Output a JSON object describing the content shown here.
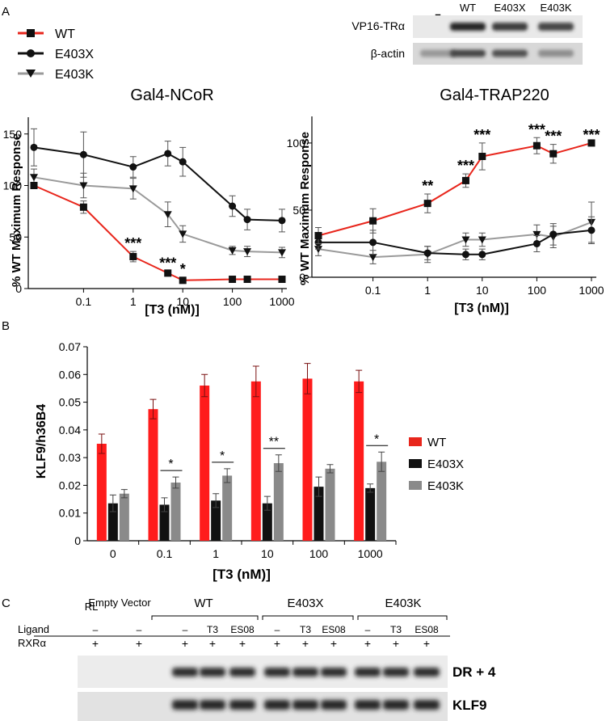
{
  "panels": {
    "a": "A",
    "b": "B",
    "c": "C"
  },
  "blot_a": {
    "lanes": [
      "–",
      "WT",
      "E403X",
      "E403K"
    ],
    "rows": [
      "VP16-TRα",
      "β-actin"
    ],
    "row1_intensity": [
      0.05,
      0.95,
      0.85,
      0.8
    ],
    "row2_intensity": [
      0.4,
      0.8,
      0.75,
      0.45
    ]
  },
  "legend_a": [
    "WT",
    "E403X",
    "E403K"
  ],
  "colors": {
    "wt": "#e8261c",
    "e403x": "#111111",
    "e403k": "#9a9a9a"
  },
  "chart_data": [
    {
      "type": "line",
      "title": "Gal4-NCoR",
      "xlabel": "[T3 (nM)]",
      "ylabel": "% WT Maximum Response",
      "xscale": "log",
      "x_ticks": [
        "0.1",
        "1",
        "10",
        "100",
        "1000"
      ],
      "x": [
        0.01,
        0.1,
        1,
        5,
        10,
        100,
        200,
        1000
      ],
      "ylim": [
        0,
        160
      ],
      "yticks": [
        0,
        50,
        100,
        150
      ],
      "series": [
        {
          "name": "WT",
          "values": [
            100,
            79,
            31,
            15,
            8,
            9,
            9,
            9
          ],
          "errors": [
            0,
            6,
            5,
            2,
            3,
            1,
            1,
            1
          ]
        },
        {
          "name": "E403X",
          "values": [
            137,
            130,
            118,
            131,
            123,
            80,
            67,
            66
          ],
          "errors": [
            18,
            22,
            10,
            12,
            14,
            10,
            10,
            11
          ]
        },
        {
          "name": "E403K",
          "values": [
            108,
            100,
            97,
            72,
            53,
            37,
            36,
            35
          ],
          "errors": [
            8,
            12,
            10,
            12,
            8,
            4,
            5,
            5
          ]
        }
      ],
      "annotations": [
        {
          "x": 1,
          "text": "***"
        },
        {
          "x": 5,
          "text": "***"
        },
        {
          "x": 10,
          "text": "*"
        }
      ]
    },
    {
      "type": "line",
      "title": "Gal4-TRAP220",
      "xlabel": "[T3 (nM)]",
      "ylabel": "% WT Maximum Response",
      "xscale": "log",
      "x_ticks": [
        "0.1",
        "1",
        "10",
        "100",
        "1000"
      ],
      "x": [
        0.01,
        0.1,
        1,
        5,
        10,
        100,
        200,
        1000
      ],
      "ylim": [
        0,
        115
      ],
      "yticks": [
        0,
        50,
        100
      ],
      "series": [
        {
          "name": "WT",
          "values": [
            31,
            42,
            55,
            72,
            90,
            98,
            92,
            100
          ],
          "errors": [
            6,
            9,
            7,
            5,
            10,
            6,
            7,
            0
          ]
        },
        {
          "name": "E403X",
          "values": [
            26,
            26,
            18,
            17,
            17,
            25,
            32,
            35
          ],
          "errors": [
            5,
            9,
            5,
            4,
            4,
            6,
            8,
            10
          ]
        },
        {
          "name": "E403K",
          "values": [
            21,
            15,
            17,
            28,
            28,
            32,
            30,
            41
          ],
          "errors": [
            5,
            5,
            6,
            5,
            5,
            7,
            8,
            15
          ]
        }
      ],
      "annotations": [
        {
          "x": 1,
          "text": "**"
        },
        {
          "x": 5,
          "text": "***"
        },
        {
          "x": 10,
          "text": "***"
        },
        {
          "x": 100,
          "text": "***"
        },
        {
          "x": 200,
          "text": "***"
        },
        {
          "x": 1000,
          "text": "***"
        }
      ]
    },
    {
      "type": "bar",
      "xlabel": "[T3 (nM)]",
      "ylabel": "KLF9/h36B4",
      "categories": [
        "0",
        "0.1",
        "1",
        "10",
        "100",
        "1000"
      ],
      "ylim": [
        0,
        0.07
      ],
      "yticks": [
        "0",
        "0.01",
        "0.02",
        "0.03",
        "0.04",
        "0.05",
        "0.06",
        "0.07"
      ],
      "series": [
        {
          "name": "WT",
          "values": [
            0.035,
            0.0475,
            0.056,
            0.0575,
            0.0585,
            0.0575
          ],
          "errors": [
            0.0035,
            0.0035,
            0.004,
            0.0055,
            0.0055,
            0.004
          ]
        },
        {
          "name": "E403X",
          "values": [
            0.0135,
            0.013,
            0.0145,
            0.0135,
            0.0195,
            0.019
          ],
          "errors": [
            0.003,
            0.0025,
            0.0025,
            0.0025,
            0.0035,
            0.0015
          ]
        },
        {
          "name": "E403K",
          "values": [
            0.017,
            0.021,
            0.0235,
            0.028,
            0.026,
            0.0285
          ],
          "errors": [
            0.0015,
            0.002,
            0.0025,
            0.003,
            0.0015,
            0.0035
          ]
        }
      ],
      "significance": [
        {
          "category": "0.1",
          "text": "*"
        },
        {
          "category": "1",
          "text": "*"
        },
        {
          "category": "10",
          "text": "**"
        },
        {
          "category": "1000",
          "text": "*"
        }
      ],
      "legend": "right"
    }
  ],
  "emsa": {
    "lane_labels": [
      "RL",
      "Empty Vector"
    ],
    "groups": [
      "WT",
      "E403X",
      "E403K"
    ],
    "ligand_label": "Ligand",
    "rxr_label": "RXRα",
    "ligands": [
      "–",
      "–",
      "–",
      "T3",
      "ES08",
      "–",
      "T3",
      "ES08",
      "–",
      "T3",
      "ES08"
    ],
    "rxr": [
      "+",
      "+",
      "+",
      "+",
      "+",
      "+",
      "+",
      "+",
      "+",
      "+",
      "+"
    ],
    "probes": [
      "DR + 4",
      "KLF9"
    ],
    "band_present": [
      false,
      false,
      true,
      true,
      true,
      true,
      true,
      true,
      true,
      true,
      true
    ]
  }
}
